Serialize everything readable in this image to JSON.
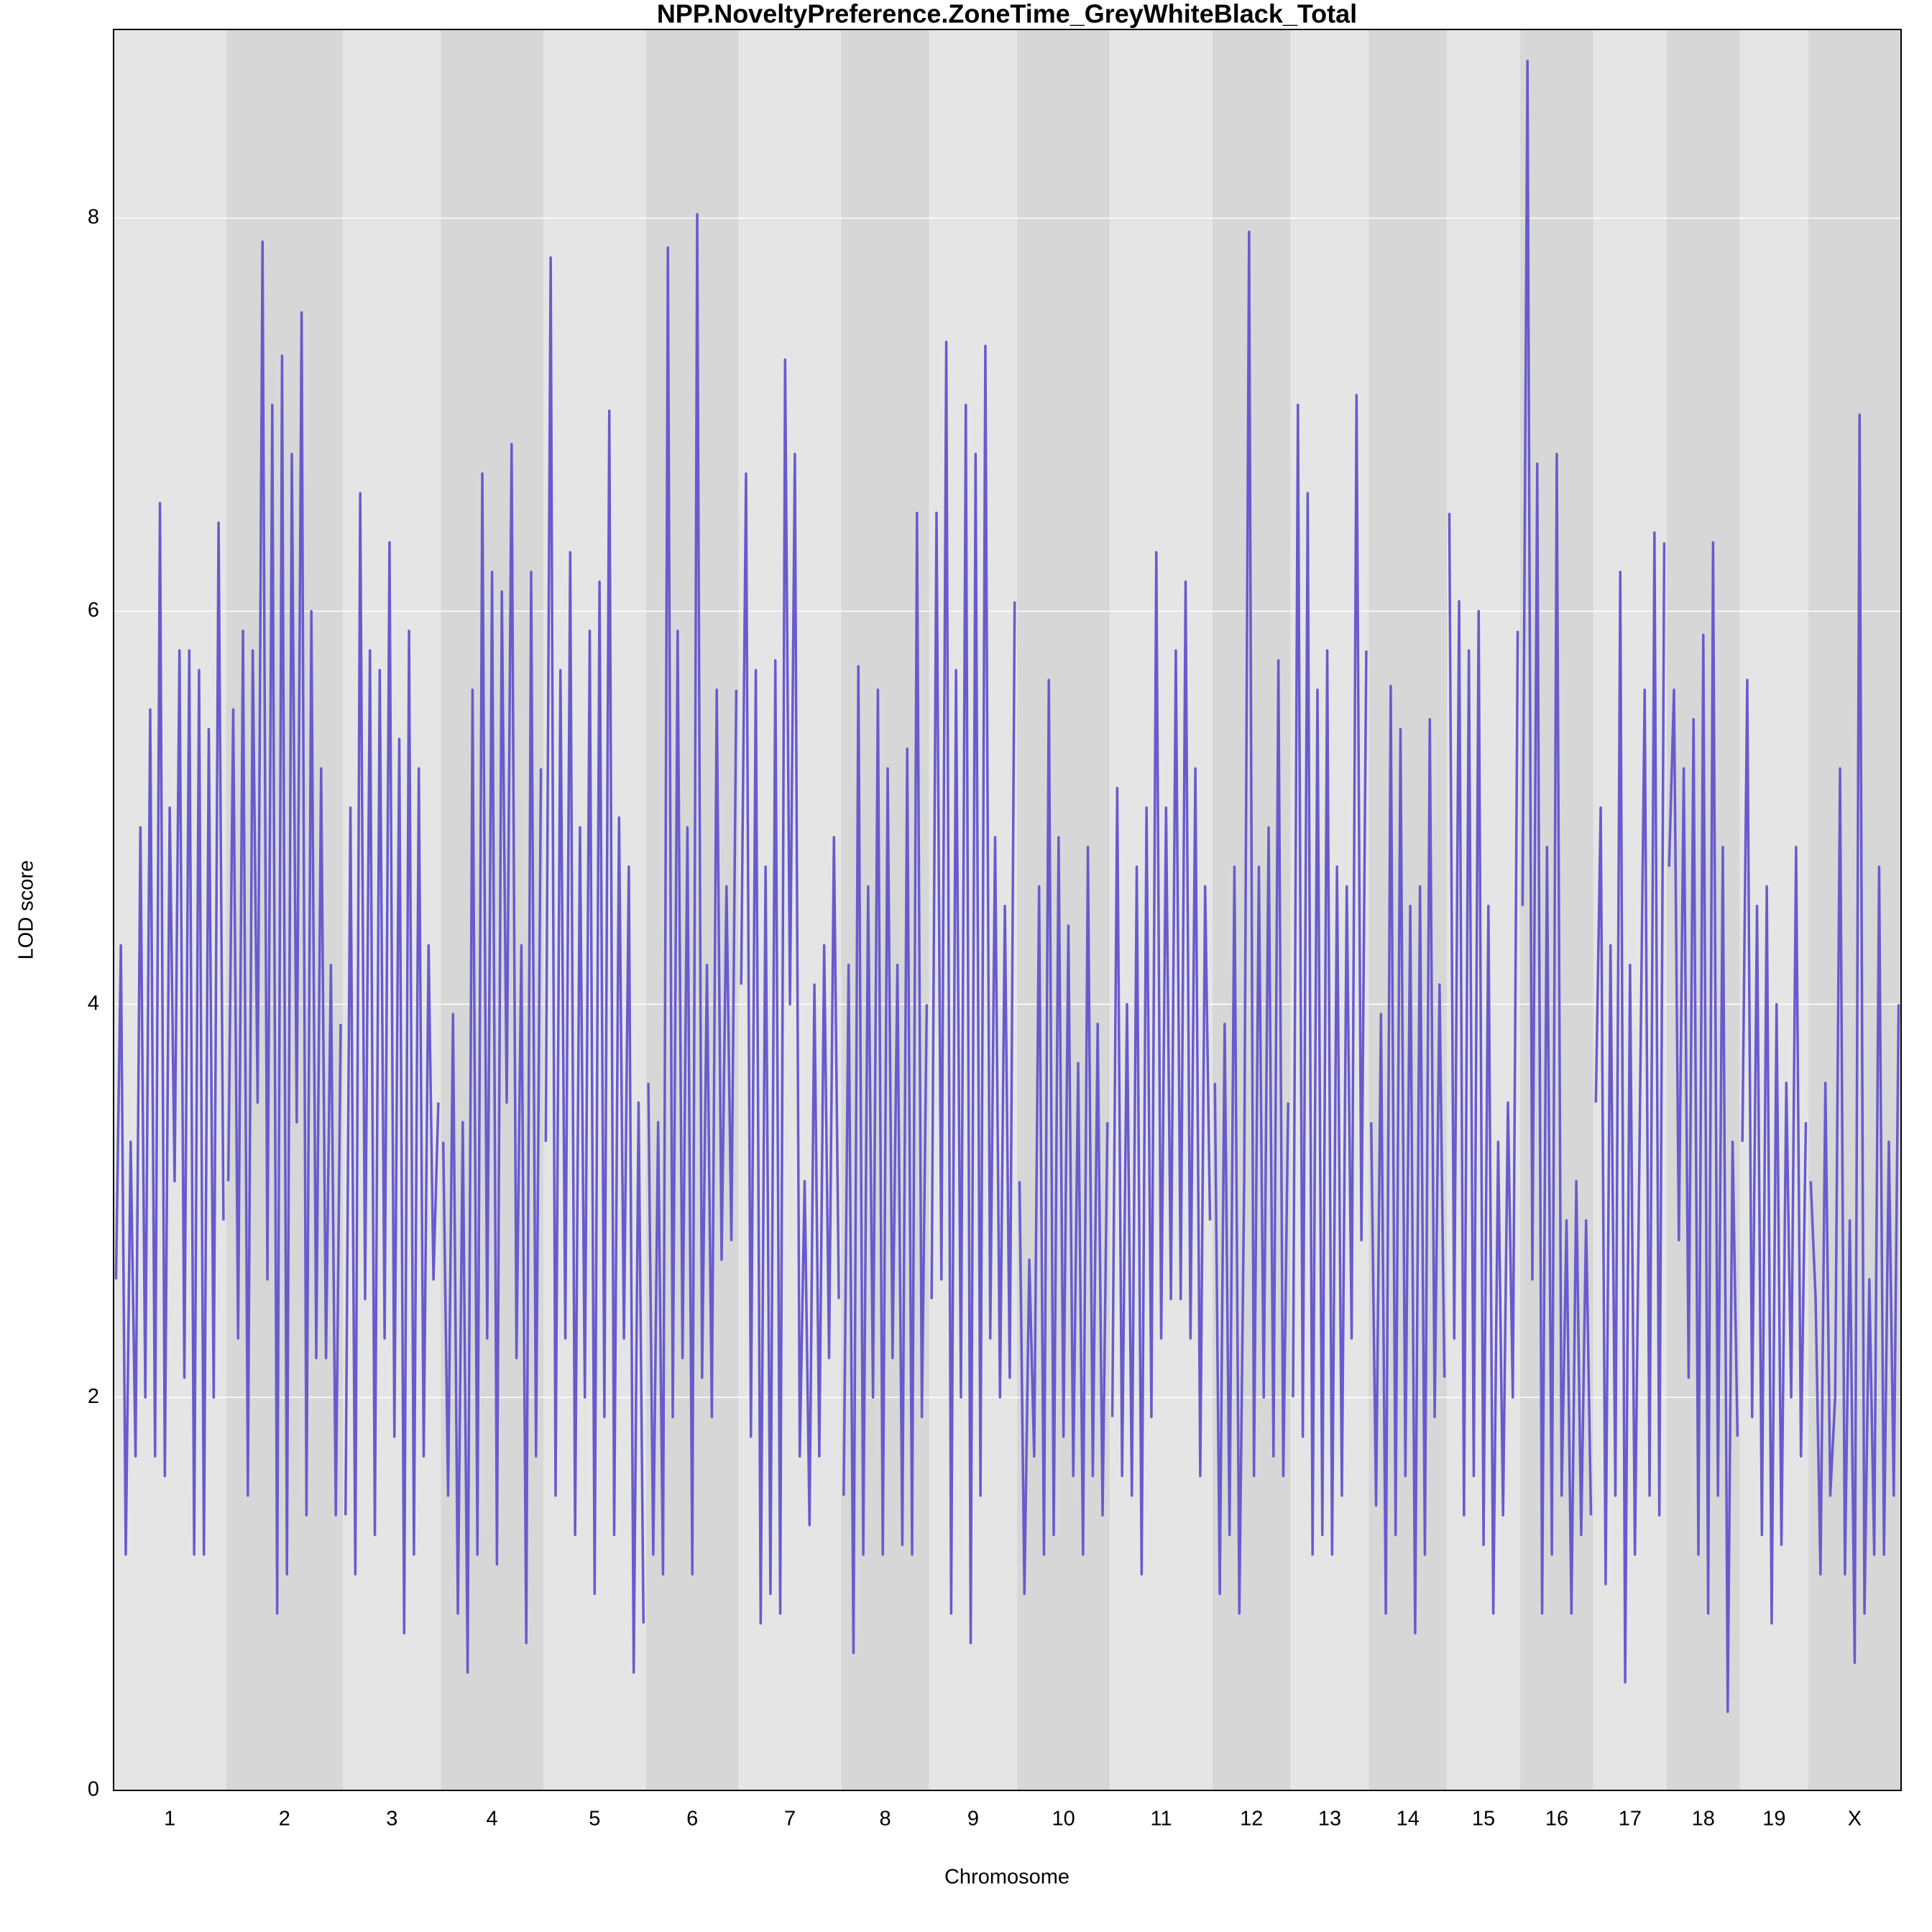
{
  "chart_data": {
    "type": "line",
    "title": "NPP.NoveltyPreference.ZoneTime_GreyWhiteBlack_Total",
    "xlabel": "Chromosome",
    "ylabel": "LOD score",
    "color": "#6a5acd",
    "ylim": [
      0,
      8.96
    ],
    "yticks": [
      0,
      2,
      4,
      6,
      8
    ],
    "grid": true,
    "chromosomes": [
      {
        "name": "1",
        "values": [
          2.6,
          4.3,
          1.2,
          3.3,
          1.7,
          4.9,
          2.0,
          5.5,
          1.7,
          6.55,
          1.6,
          5.0,
          3.1,
          5.8,
          2.1,
          5.8,
          1.2,
          5.7,
          1.2,
          5.4,
          2.0,
          6.45,
          2.9
        ]
      },
      {
        "name": "2",
        "values": [
          3.1,
          5.5,
          2.3,
          5.9,
          1.5,
          5.8,
          3.5,
          7.88,
          2.6,
          7.05,
          0.9,
          7.3,
          1.1,
          6.8,
          3.4,
          7.52,
          1.4,
          6.0,
          2.2,
          5.2,
          2.2,
          4.2,
          1.4,
          3.9
        ]
      },
      {
        "name": "3",
        "values": [
          1.4,
          5.0,
          1.1,
          6.6,
          2.5,
          5.8,
          1.3,
          5.7,
          2.3,
          6.35,
          1.8,
          5.35,
          0.8,
          5.9,
          1.2,
          5.2,
          1.7,
          4.3,
          2.6,
          3.5
        ]
      },
      {
        "name": "4",
        "values": [
          3.3,
          1.5,
          3.95,
          0.9,
          3.4,
          0.6,
          5.6,
          1.2,
          6.7,
          2.3,
          6.2,
          1.15,
          6.1,
          3.5,
          6.85,
          2.2,
          4.3,
          0.75,
          6.2,
          1.7,
          5.2
        ]
      },
      {
        "name": "5",
        "values": [
          3.3,
          7.8,
          1.5,
          5.7,
          2.3,
          6.3,
          1.3,
          4.9,
          2.0,
          5.9,
          1.0,
          6.15,
          1.9,
          7.02,
          1.3,
          4.95,
          2.3,
          4.7,
          0.6,
          3.5,
          0.85
        ]
      },
      {
        "name": "6",
        "values": [
          3.6,
          1.2,
          3.4,
          1.1,
          7.85,
          1.9,
          5.9,
          2.2,
          4.9,
          1.1,
          8.02,
          2.1,
          4.2,
          1.9,
          5.6,
          2.7,
          4.6,
          2.8,
          5.6
        ]
      },
      {
        "name": "7",
        "values": [
          4.1,
          6.7,
          1.8,
          5.7,
          0.85,
          4.7,
          1.0,
          5.75,
          0.9,
          7.28,
          4.0,
          6.8,
          1.7,
          3.1,
          1.35,
          4.1,
          1.7,
          4.3,
          2.2,
          4.85,
          2.5
        ]
      },
      {
        "name": "8",
        "values": [
          1.5,
          4.2,
          0.7,
          5.72,
          1.2,
          4.6,
          2.0,
          5.6,
          1.2,
          5.2,
          2.2,
          4.2,
          1.25,
          5.3,
          1.2,
          6.5,
          1.9,
          4.0
        ]
      },
      {
        "name": "9",
        "values": [
          2.5,
          6.5,
          2.6,
          7.37,
          0.9,
          5.7,
          2.0,
          7.05,
          0.75,
          6.8,
          1.5,
          7.35,
          2.3,
          4.85,
          2.0,
          4.5,
          2.1,
          6.05
        ]
      },
      {
        "name": "10",
        "values": [
          3.1,
          1.0,
          2.7,
          1.7,
          4.6,
          1.2,
          5.65,
          1.3,
          4.85,
          1.8,
          4.4,
          1.6,
          3.7,
          1.2,
          4.8,
          1.6,
          3.9,
          1.4,
          3.4
        ]
      },
      {
        "name": "11",
        "values": [
          1.9,
          5.1,
          1.6,
          4.0,
          1.5,
          4.7,
          1.1,
          5.0,
          1.9,
          6.3,
          2.3,
          5.0,
          2.5,
          5.8,
          2.5,
          6.15,
          2.3,
          5.2,
          1.6,
          4.6,
          2.9
        ]
      },
      {
        "name": "12",
        "values": [
          3.6,
          1.0,
          3.9,
          1.3,
          4.7,
          0.9,
          3.1,
          7.93,
          1.6,
          4.7,
          2.0,
          4.9,
          1.7,
          5.75,
          1.6,
          3.5
        ]
      },
      {
        "name": "13",
        "values": [
          2.0,
          7.05,
          1.8,
          6.6,
          1.2,
          5.6,
          1.3,
          5.8,
          1.2,
          4.7,
          1.5,
          4.6,
          2.3,
          7.1,
          2.8,
          5.8
        ]
      },
      {
        "name": "14",
        "values": [
          3.4,
          1.45,
          3.95,
          0.9,
          5.62,
          1.3,
          5.4,
          1.6,
          4.5,
          0.8,
          4.6,
          1.2,
          5.45,
          1.9,
          4.1,
          2.1
        ]
      },
      {
        "name": "15",
        "values": [
          6.5,
          2.3,
          6.05,
          1.4,
          5.8,
          1.6,
          6.0,
          1.25,
          4.5,
          0.9,
          3.3,
          1.4,
          3.5,
          2.0,
          5.9
        ]
      },
      {
        "name": "16",
        "values": [
          4.5,
          8.8,
          2.6,
          6.75,
          0.9,
          4.8,
          1.2,
          6.8,
          1.5,
          2.9,
          0.9,
          3.1,
          1.3,
          2.9,
          1.4
        ]
      },
      {
        "name": "17",
        "values": [
          3.5,
          5.0,
          1.05,
          4.3,
          1.5,
          6.2,
          0.55,
          4.2,
          1.2,
          3.4,
          5.6,
          1.5,
          6.4,
          1.4,
          6.35
        ]
      },
      {
        "name": "18",
        "values": [
          4.7,
          5.6,
          2.8,
          5.2,
          2.1,
          5.45,
          1.2,
          5.88,
          0.9,
          6.35,
          1.5,
          4.8,
          0.4,
          3.3,
          1.8
        ]
      },
      {
        "name": "19",
        "values": [
          3.3,
          5.65,
          1.9,
          4.5,
          1.3,
          4.6,
          0.85,
          4.0,
          1.25,
          3.6,
          2.0,
          4.8,
          1.7,
          3.4
        ]
      },
      {
        "name": "X",
        "values": [
          3.1,
          2.5,
          1.1,
          3.6,
          1.5,
          2.0,
          5.2,
          1.1,
          2.9,
          0.65,
          7.0,
          0.9,
          2.6,
          1.2,
          4.7,
          1.2,
          3.3,
          1.5,
          4.0
        ]
      }
    ]
  }
}
